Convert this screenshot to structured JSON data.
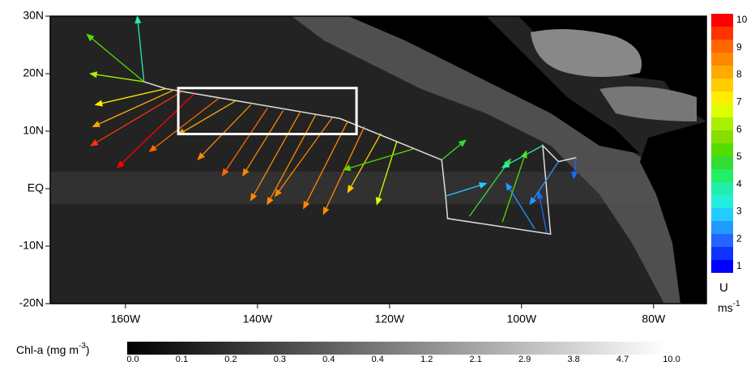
{
  "chart_data": {
    "type": "vector-map",
    "xlim": [
      -171.4,
      -72
    ],
    "ylim": [
      -20,
      30
    ],
    "xticks": [
      {
        "value": -160,
        "label": "160W"
      },
      {
        "value": -140,
        "label": "140W"
      },
      {
        "value": -120,
        "label": "120W"
      },
      {
        "value": -100,
        "label": "100W"
      },
      {
        "value": -80,
        "label": "80W"
      }
    ],
    "yticks": [
      {
        "value": 30,
        "label": "30N"
      },
      {
        "value": 20,
        "label": "20N"
      },
      {
        "value": 10,
        "label": "10N"
      },
      {
        "value": 0,
        "label": "EQ"
      },
      {
        "value": -10,
        "label": "-10N"
      },
      {
        "value": -20,
        "label": "-20N"
      }
    ],
    "track": {
      "lon": [
        -157.2,
        -153.9,
        -127.5,
        -112.1,
        -111.5,
        -111.2,
        -95.6,
        -96.8,
        -94.4,
        -91.7
      ],
      "lat": [
        18.6,
        17.4,
        12.2,
        5.0,
        -1.3,
        -5.2,
        -7.9,
        7.5,
        4.7,
        5.4
      ]
    },
    "study_box": {
      "lon": [
        -152,
        -125
      ],
      "lat": [
        9.5,
        17.5
      ]
    },
    "vectors": [
      {
        "lon": -157.2,
        "lat": 18.6,
        "lon_end": -158.2,
        "lat_end": 29.9,
        "speed": 4
      },
      {
        "lon": -157.2,
        "lat": 18.6,
        "lon_end": -165.8,
        "lat_end": 26.8,
        "speed": 5.5
      },
      {
        "lon": -157.2,
        "lat": 18.6,
        "lon_end": -165.3,
        "lat_end": 20.0,
        "speed": 6
      },
      {
        "lon": -153.9,
        "lat": 17.4,
        "lon_end": -164.5,
        "lat_end": 14.6,
        "speed": 7
      },
      {
        "lon": -152.6,
        "lat": 17.2,
        "lon_end": -164.9,
        "lat_end": 10.8,
        "speed": 8
      },
      {
        "lon": -151.4,
        "lat": 16.9,
        "lon_end": -165.2,
        "lat_end": 7.5,
        "speed": 9.5
      },
      {
        "lon": -149.6,
        "lat": 16.5,
        "lon_end": -161.2,
        "lat_end": 3.7,
        "speed": 10
      },
      {
        "lon": -145.9,
        "lat": 15.7,
        "lon_end": -156.3,
        "lat_end": 6.5,
        "speed": 9
      },
      {
        "lon": -143.4,
        "lat": 15.2,
        "lon_end": -152.0,
        "lat_end": 9.4,
        "speed": 8
      },
      {
        "lon": -141.0,
        "lat": 14.6,
        "lon_end": -149.0,
        "lat_end": 5.1,
        "speed": 8.5
      },
      {
        "lon": -138.5,
        "lat": 14.0,
        "lon_end": -145.3,
        "lat_end": 2.3,
        "speed": 9
      },
      {
        "lon": -136.1,
        "lat": 13.6,
        "lon_end": -142.2,
        "lat_end": 2.3,
        "speed": 8.5
      },
      {
        "lon": -133.6,
        "lat": 13.2,
        "lon_end": -141.0,
        "lat_end": -2.0,
        "speed": 8.5
      },
      {
        "lon": -131.2,
        "lat": 12.8,
        "lon_end": -138.5,
        "lat_end": -2.7,
        "speed": 8.5
      },
      {
        "lon": -128.7,
        "lat": 12.3,
        "lon_end": -137.3,
        "lat_end": -1.3,
        "speed": 8.5
      },
      {
        "lon": -126.3,
        "lat": 11.8,
        "lon_end": -133.0,
        "lat_end": -3.4,
        "speed": 8.5
      },
      {
        "lon": -123.8,
        "lat": 10.8,
        "lon_end": -130.0,
        "lat_end": -4.4,
        "speed": 8.5
      },
      {
        "lon": -121.3,
        "lat": 9.6,
        "lon_end": -126.3,
        "lat_end": -0.6,
        "speed": 7.5
      },
      {
        "lon": -118.9,
        "lat": 8.2,
        "lon_end": -121.9,
        "lat_end": -2.7,
        "speed": 6.5
      },
      {
        "lon": -116.4,
        "lat": 6.9,
        "lon_end": -126.9,
        "lat_end": 3.3,
        "speed": 5.5
      },
      {
        "lon": -112.1,
        "lat": 5.0,
        "lon_end": -108.5,
        "lat_end": 8.4,
        "speed": 5
      },
      {
        "lon": -111.5,
        "lat": -1.3,
        "lon_end": -105.4,
        "lat_end": 0.9,
        "speed": 3
      },
      {
        "lon": -107.9,
        "lat": -4.8,
        "lon_end": -101.7,
        "lat_end": 5.1,
        "speed": 5
      },
      {
        "lon": -102.9,
        "lat": -5.8,
        "lon_end": -99.3,
        "lat_end": 6.5,
        "speed": 5.5
      },
      {
        "lon": -98.0,
        "lat": -7.0,
        "lon_end": -102.3,
        "lat_end": 0.9,
        "speed": 2.5
      },
      {
        "lon": -96.2,
        "lat": -7.7,
        "lon_end": -97.4,
        "lat_end": -0.6,
        "speed": 2
      },
      {
        "lon": -96.8,
        "lat": 7.5,
        "lon_end": -102.9,
        "lat_end": 3.7,
        "speed": 4
      },
      {
        "lon": -91.7,
        "lat": 5.4,
        "lon_end": -92.1,
        "lat_end": 1.8,
        "speed": 2
      },
      {
        "lon": -94.4,
        "lat": 4.7,
        "lon_end": -98.7,
        "lat_end": -2.7,
        "speed": 2.5
      }
    ],
    "wind_colorbar": {
      "title": "U",
      "unit": "ms",
      "unit_exponent": "-1",
      "ticks": [
        10,
        9,
        8,
        7,
        6,
        5,
        4,
        3,
        2,
        1
      ],
      "colors": [
        "#ff0000",
        "#ff3300",
        "#ff6600",
        "#ff8800",
        "#ffaa00",
        "#ffcc00",
        "#ffee00",
        "#ddff00",
        "#aaee00",
        "#88dd00",
        "#55dd00",
        "#33dd33",
        "#22ee66",
        "#22eeaa",
        "#22eedd",
        "#22ccff",
        "#2299ff",
        "#2266ff",
        "#1133ff",
        "#0000ff"
      ]
    },
    "chl_colorbar": {
      "title": "Chl-a (mg m",
      "title_exponent": "-3",
      "title_end": ")",
      "labels": [
        "0.0",
        "0.1",
        "0.2",
        "0.3",
        "0.4",
        "0.4",
        "1.2",
        "2.1",
        "2.9",
        "3.8",
        "4.7",
        "10.0"
      ]
    }
  }
}
